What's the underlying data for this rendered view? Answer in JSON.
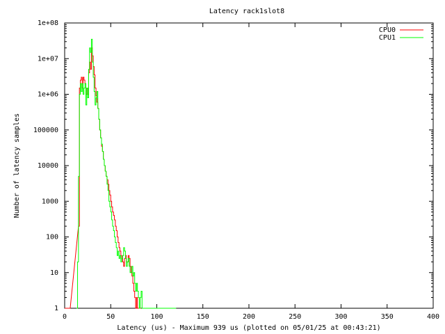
{
  "chart_data": {
    "type": "line",
    "title": "Latency rack1slot8",
    "xlabel": "Latency (us) - Maximum 939 us (plotted on 05/01/25 at 00:43:21)",
    "ylabel": "Number of latency samples",
    "xlim": [
      0,
      400
    ],
    "ylim": [
      1,
      100000000
    ],
    "y_scale": "log",
    "grid": false,
    "legend_position": "top-right",
    "x_ticks": [
      0,
      50,
      100,
      150,
      200,
      250,
      300,
      350,
      400
    ],
    "x_tick_labels": [
      "0",
      "50",
      "100",
      "150",
      "200",
      "250",
      "300",
      "350",
      "400"
    ],
    "y_ticks": [
      1,
      10,
      100,
      1000,
      10000,
      100000,
      1000000,
      10000000,
      100000000
    ],
    "y_tick_labels": [
      "1",
      "10",
      "100",
      "1000",
      "10000",
      "100000",
      "1e+06",
      "1e+07",
      "1e+08"
    ],
    "series": [
      {
        "name": "CPU0",
        "color": "#ff0000",
        "x": [
          0,
          1,
          2,
          3,
          4,
          5,
          15,
          16,
          17,
          18,
          19,
          20,
          21,
          22,
          23,
          24,
          25,
          26,
          27,
          28,
          29,
          30,
          31,
          32,
          33,
          34,
          35,
          36,
          37,
          38,
          39,
          40,
          41,
          42,
          43,
          44,
          45,
          46,
          47,
          48,
          49,
          50,
          51,
          52,
          53,
          54,
          55,
          56,
          57,
          58,
          59,
          60,
          61,
          62,
          63,
          64,
          65,
          66,
          67,
          68,
          69,
          70,
          71,
          72,
          73,
          74,
          75,
          76,
          77,
          78,
          79,
          80,
          81,
          82
        ],
        "y": [
          1,
          1,
          1,
          1,
          1,
          0,
          200,
          1500000,
          2500000,
          3000000,
          1500000,
          3000000,
          2500000,
          2000000,
          1000000,
          1500000,
          1000000,
          4000000,
          8000000,
          5000000,
          20000000,
          12000000,
          6000000,
          3500000,
          1500000,
          900000,
          600000,
          400000,
          200000,
          100000,
          60000,
          35000,
          25000,
          15000,
          10000,
          7000,
          5000,
          4000,
          3000,
          2000,
          1500,
          1000,
          700,
          500,
          400,
          300,
          200,
          150,
          100,
          70,
          50,
          40,
          30,
          25,
          20,
          15,
          25,
          30,
          20,
          20,
          30,
          25,
          15,
          10,
          8,
          5,
          3,
          2,
          1,
          2,
          1,
          1,
          1,
          1
        ],
        "values": [
          1,
          1,
          1,
          1,
          1,
          0,
          200,
          1500000,
          2500000,
          3000000,
          1500000,
          3000000,
          2500000,
          2000000,
          1000000,
          1500000,
          1000000,
          4000000,
          8000000,
          5000000,
          20000000,
          12000000,
          6000000,
          3500000,
          1500000,
          900000,
          600000,
          400000,
          200000,
          100000,
          60000,
          35000,
          25000,
          15000,
          10000,
          7000,
          5000,
          4000,
          3000,
          2000,
          1500,
          1000,
          700,
          500,
          400,
          300,
          200,
          150,
          100,
          70,
          50,
          40,
          30,
          25,
          20,
          15,
          25,
          30,
          20,
          20,
          30,
          25,
          15,
          10,
          8,
          5,
          3,
          2,
          1,
          2,
          1,
          1,
          1,
          1
        ]
      },
      {
        "name": "CPU1",
        "color": "#00ff00",
        "x": [
          13,
          14,
          15,
          16,
          17,
          18,
          19,
          20,
          21,
          22,
          23,
          24,
          25,
          26,
          27,
          28,
          29,
          30,
          31,
          32,
          33,
          34,
          35,
          36,
          37,
          38,
          39,
          40,
          41,
          42,
          43,
          44,
          45,
          46,
          47,
          48,
          49,
          50,
          51,
          52,
          53,
          54,
          55,
          56,
          57,
          58,
          59,
          60,
          61,
          62,
          63,
          64,
          65,
          66,
          67,
          68,
          69,
          70,
          71,
          72,
          73,
          74,
          75,
          76,
          77,
          78,
          79,
          80,
          81,
          82,
          83,
          84,
          85,
          86,
          87,
          88,
          89,
          90,
          91,
          92,
          93,
          94,
          95,
          96,
          97,
          98,
          99,
          100,
          101,
          102,
          103,
          104,
          105,
          106,
          107,
          108,
          109,
          110,
          111,
          112,
          113,
          114,
          115,
          116,
          117,
          118,
          119,
          120
        ],
        "y": [
          1,
          20,
          5000,
          1000000,
          2000000,
          1200000,
          2000000,
          1000000,
          1500000,
          2000000,
          500000,
          1500000,
          800000,
          5000000,
          20000000,
          15000000,
          35000000,
          8000000,
          3000000,
          1200000,
          500000,
          800000,
          1200000,
          400000,
          200000,
          100000,
          60000,
          40000,
          25000,
          15000,
          10000,
          7000,
          5000,
          3000,
          2000,
          1000,
          700,
          500,
          300,
          200,
          150,
          100,
          70,
          50,
          30,
          40,
          25,
          30,
          20,
          25,
          30,
          50,
          40,
          25,
          15,
          20,
          25,
          15,
          10,
          10,
          15,
          8,
          10,
          5,
          3,
          5,
          3,
          2,
          1,
          2,
          3,
          1,
          1,
          0,
          0,
          0,
          0,
          1,
          0,
          0,
          0,
          0,
          0,
          0,
          0,
          0,
          0,
          0,
          0,
          0,
          0,
          0,
          0,
          0,
          1,
          1,
          0,
          0,
          0,
          0,
          1,
          0,
          0,
          0,
          0,
          0,
          1,
          0
        ],
        "values": [
          1,
          20,
          5000,
          1000000,
          2000000,
          1200000,
          2000000,
          1000000,
          1500000,
          2000000,
          500000,
          1500000,
          800000,
          5000000,
          20000000,
          15000000,
          35000000,
          8000000,
          3000000,
          1200000,
          500000,
          800000,
          1200000,
          400000,
          200000,
          100000,
          60000,
          40000,
          25000,
          15000,
          10000,
          7000,
          5000,
          3000,
          2000,
          1000,
          700,
          500,
          300,
          200,
          150,
          100,
          70,
          50,
          30,
          40,
          25,
          30,
          20,
          25,
          30,
          50,
          40,
          25,
          15,
          20,
          25,
          15,
          10,
          10,
          15,
          8,
          10,
          5,
          3,
          5,
          3,
          2,
          1,
          2,
          3,
          1,
          1,
          0,
          0,
          0,
          0,
          1,
          0,
          0,
          0,
          0,
          0,
          0,
          0,
          0,
          0,
          0,
          0,
          0,
          0,
          0,
          0,
          0,
          1,
          1,
          0,
          0,
          0,
          0,
          1,
          0,
          0,
          0,
          0,
          0,
          1,
          0
        ]
      }
    ]
  }
}
